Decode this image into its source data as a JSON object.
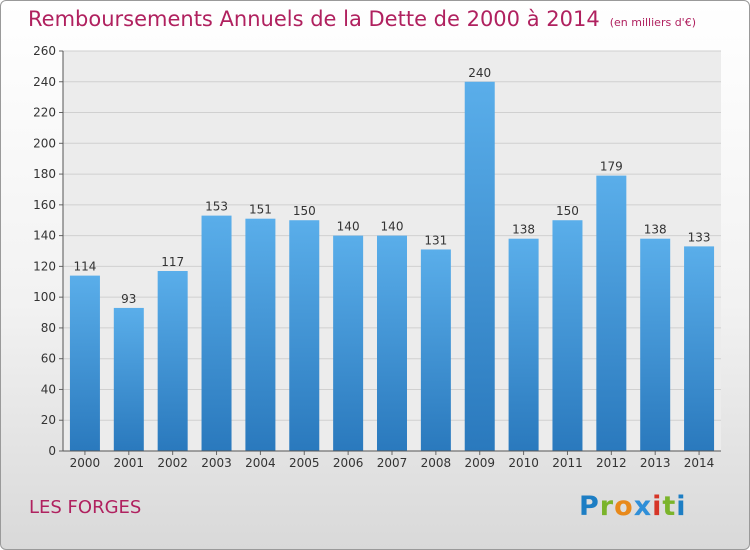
{
  "chart_data": {
    "type": "bar",
    "title": "Remboursements Annuels de la Dette de 2000 à 2014",
    "subtitle": "(en milliers d'€)",
    "categories": [
      "2000",
      "2001",
      "2002",
      "2003",
      "2004",
      "2005",
      "2006",
      "2007",
      "2008",
      "2009",
      "2010",
      "2011",
      "2012",
      "2013",
      "2014"
    ],
    "values": [
      114,
      93,
      117,
      153,
      151,
      150,
      140,
      140,
      131,
      240,
      138,
      150,
      179,
      138,
      133
    ],
    "ylim": [
      0,
      260
    ],
    "yticks": [
      0,
      20,
      40,
      60,
      80,
      100,
      120,
      140,
      160,
      180,
      200,
      220,
      240,
      260
    ],
    "xlabel": "",
    "ylabel": "",
    "grid": true,
    "bar_color": "#4f9fe0"
  },
  "footer": {
    "commune": "LES FORGES",
    "brand": "Proxiti"
  }
}
